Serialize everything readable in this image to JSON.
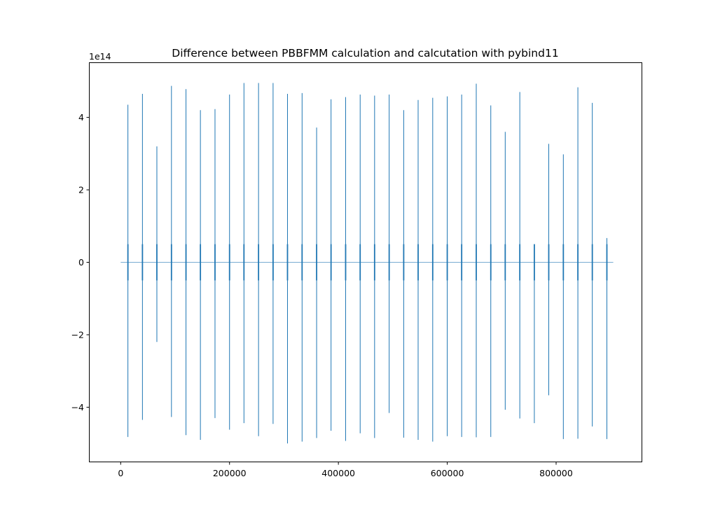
{
  "chart_data": {
    "type": "line",
    "title": "Difference between PBBFMM calculation and calcutation with pybind11",
    "xlabel": "",
    "ylabel": "",
    "y_offset_text": "1e14",
    "xlim": [
      -57000,
      957000
    ],
    "ylim": [
      -5.5,
      5.5
    ],
    "y_scale_factor": 100000000000000.0,
    "x_ticks": [
      0,
      200000,
      400000,
      600000,
      800000
    ],
    "x_tick_labels": [
      "0",
      "200000",
      "400000",
      "600000",
      "800000"
    ],
    "y_ticks": [
      -4,
      -2,
      0,
      2,
      4
    ],
    "y_tick_labels": [
      "−4",
      "−2",
      "0",
      "2",
      "4"
    ],
    "grid": false,
    "series_color": "#1f77b4",
    "baseline_x_range": [
      0,
      905000
    ],
    "spikes": [
      {
        "x": 13300,
        "ymax": 4.35,
        "ymin": -4.82
      },
      {
        "x": 40000,
        "ymax": 4.65,
        "ymin": -4.35
      },
      {
        "x": 66500,
        "ymax": 3.2,
        "ymin": -2.2
      },
      {
        "x": 93300,
        "ymax": 4.87,
        "ymin": -4.27
      },
      {
        "x": 120000,
        "ymax": 4.78,
        "ymin": -4.77
      },
      {
        "x": 146500,
        "ymax": 4.2,
        "ymin": -4.9
      },
      {
        "x": 173300,
        "ymax": 4.23,
        "ymin": -4.3
      },
      {
        "x": 200000,
        "ymax": 4.63,
        "ymin": -4.62
      },
      {
        "x": 226500,
        "ymax": 4.95,
        "ymin": -4.44
      },
      {
        "x": 253300,
        "ymax": 4.95,
        "ymin": -4.8
      },
      {
        "x": 280000,
        "ymax": 4.95,
        "ymin": -4.46
      },
      {
        "x": 306500,
        "ymax": 4.65,
        "ymin": -5.0
      },
      {
        "x": 333300,
        "ymax": 4.67,
        "ymin": -4.95
      },
      {
        "x": 360000,
        "ymax": 3.72,
        "ymin": -4.85
      },
      {
        "x": 386500,
        "ymax": 4.5,
        "ymin": -4.65
      },
      {
        "x": 413300,
        "ymax": 4.56,
        "ymin": -4.93
      },
      {
        "x": 440000,
        "ymax": 4.63,
        "ymin": -4.72
      },
      {
        "x": 466500,
        "ymax": 4.6,
        "ymin": -4.85
      },
      {
        "x": 493300,
        "ymax": 4.63,
        "ymin": -4.16
      },
      {
        "x": 520000,
        "ymax": 4.2,
        "ymin": -4.84
      },
      {
        "x": 546500,
        "ymax": 4.48,
        "ymin": -4.9
      },
      {
        "x": 573300,
        "ymax": 4.54,
        "ymin": -4.95
      },
      {
        "x": 600000,
        "ymax": 4.58,
        "ymin": -4.8
      },
      {
        "x": 626500,
        "ymax": 4.63,
        "ymin": -4.82
      },
      {
        "x": 653300,
        "ymax": 4.93,
        "ymin": -4.83
      },
      {
        "x": 680000,
        "ymax": 4.33,
        "ymin": -4.82
      },
      {
        "x": 706500,
        "ymax": 3.6,
        "ymin": -4.07
      },
      {
        "x": 733300,
        "ymax": 4.7,
        "ymin": -4.31
      },
      {
        "x": 760000,
        "ymax": 0.5,
        "ymin": -4.44
      },
      {
        "x": 786500,
        "ymax": 3.27,
        "ymin": -3.67
      },
      {
        "x": 813300,
        "ymax": 2.98,
        "ymin": -4.88
      },
      {
        "x": 840000,
        "ymax": 4.83,
        "ymin": -4.87
      },
      {
        "x": 866500,
        "ymax": 4.4,
        "ymin": -4.53
      },
      {
        "x": 893300,
        "ymax": 0.67,
        "ymin": -4.88
      }
    ]
  }
}
